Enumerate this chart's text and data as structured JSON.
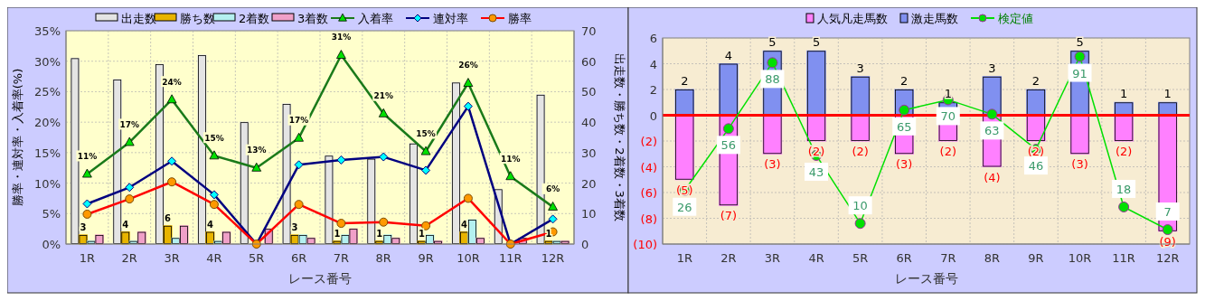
{
  "chart_data": [
    {
      "type": "bar",
      "xlabel": "レース番号",
      "ylabel": "勝率・連対率・入着率(%)",
      "y2label": "出走数・勝ち数・2着数・3着数",
      "categories": [
        "1R",
        "2R",
        "3R",
        "4R",
        "5R",
        "6R",
        "7R",
        "8R",
        "9R",
        "10R",
        "11R",
        "12R"
      ],
      "ylim": [
        0,
        35
      ],
      "yticks": [
        {
          "value": 0,
          "label": "0%"
        },
        {
          "value": 5,
          "label": "5%"
        },
        {
          "value": 10,
          "label": "10%"
        },
        {
          "value": 15,
          "label": "15%"
        },
        {
          "value": 20,
          "label": "20%"
        },
        {
          "value": 25,
          "label": "25%"
        },
        {
          "value": 30,
          "label": "30%"
        },
        {
          "value": 35,
          "label": "35%"
        }
      ],
      "y2lim": [
        0,
        70
      ],
      "y2ticks": [
        0,
        10,
        20,
        30,
        40,
        50,
        60,
        70
      ],
      "grid": true,
      "legend": "top",
      "series": [
        {
          "name": "出走数",
          "axis": "y2",
          "color": "#e4e4e4",
          "values": [
            61,
            54,
            59,
            62,
            40,
            46,
            29,
            28,
            33,
            53,
            18,
            49
          ]
        },
        {
          "name": "勝ち数",
          "axis": "y2",
          "color": "#e8b400",
          "values": [
            3,
            4,
            6,
            4,
            0,
            3,
            1,
            1,
            1,
            4,
            0,
            1
          ],
          "value_labels": [
            "3",
            "4",
            "6",
            "4",
            null,
            "3",
            "1",
            "1",
            "1",
            "4",
            null,
            "1"
          ]
        },
        {
          "name": "2着数",
          "axis": "y2",
          "color": "#b4f0f0",
          "values": [
            1,
            1,
            2,
            1,
            0,
            3,
            3,
            3,
            3,
            8,
            0,
            1
          ]
        },
        {
          "name": "3着数",
          "axis": "y2",
          "color": "#f0a0c8",
          "values": [
            3,
            4,
            6,
            4,
            5,
            2,
            5,
            2,
            1,
            2,
            2,
            1
          ]
        },
        {
          "name": "入着率",
          "type": "line",
          "color": "#1a7a1a",
          "marker": "triangle",
          "values": [
            11.5,
            16.7,
            23.7,
            14.5,
            12.5,
            17.4,
            31.0,
            21.4,
            15.2,
            26.4,
            11.1,
            6.1
          ],
          "value_labels": [
            "11%",
            "17%",
            "24%",
            "15%",
            "13%",
            "17%",
            "31%",
            "21%",
            "15%",
            "26%",
            "11%",
            "6%"
          ]
        },
        {
          "name": "連対率",
          "type": "line",
          "color": "#000080",
          "marker": "diamond",
          "values": [
            6.6,
            9.3,
            13.6,
            8.1,
            0,
            13.0,
            13.8,
            14.3,
            12.1,
            22.6,
            0,
            4.1
          ]
        },
        {
          "name": "勝率",
          "type": "line",
          "color": "#ff0000",
          "marker": "circle",
          "values": [
            4.9,
            7.4,
            10.2,
            6.5,
            0,
            6.5,
            3.4,
            3.6,
            3.0,
            7.5,
            0,
            2.0
          ]
        }
      ]
    },
    {
      "type": "bar",
      "xlabel": "レース番号",
      "stacked": true,
      "categories": [
        "1R",
        "2R",
        "3R",
        "4R",
        "5R",
        "6R",
        "7R",
        "8R",
        "9R",
        "10R",
        "11R",
        "12R"
      ],
      "ylim": [
        -10,
        6
      ],
      "yticks": [
        {
          "value": -10,
          "label": "(10)"
        },
        {
          "value": -8,
          "label": "(8)"
        },
        {
          "value": -6,
          "label": "(6)"
        },
        {
          "value": -4,
          "label": "(4)"
        },
        {
          "value": -2,
          "label": "(2)"
        },
        0,
        2,
        4,
        6
      ],
      "y2lim": [
        0,
        100
      ],
      "grid": true,
      "legend": "top",
      "ref_lines": [
        {
          "axis": "y",
          "value": 0,
          "color": "#ff0000"
        }
      ],
      "series": [
        {
          "name": "人気凡走馬数",
          "color": "#ff80ff",
          "values": [
            -5,
            -7,
            -3,
            -2,
            -2,
            -3,
            -2,
            -4,
            -2,
            -3,
            -2,
            -9
          ],
          "value_labels": [
            "(5)",
            "(7)",
            "(3)",
            "(2)",
            "(2)",
            "(3)",
            "(2)",
            "(4)",
            "(2)",
            "(3)",
            "(2)",
            "(9)"
          ]
        },
        {
          "name": "激走馬数",
          "color": "#8090f0",
          "values": [
            2,
            4,
            5,
            5,
            3,
            2,
            1,
            3,
            2,
            5,
            1,
            1
          ],
          "value_labels": [
            "2",
            "4",
            "5",
            "5",
            "3",
            "2",
            "1",
            "3",
            "2",
            "5",
            "1",
            "1"
          ]
        },
        {
          "name": "検定値",
          "type": "line",
          "axis": "y2",
          "color": "#00e000",
          "marker": "circle",
          "values": [
            26,
            56,
            88,
            43,
            10,
            65,
            70,
            63,
            46,
            91,
            18,
            7
          ],
          "value_labels": [
            "26",
            "56",
            "88",
            "43",
            "10",
            "65",
            "70",
            "63",
            "46",
            "91",
            "18",
            "7"
          ]
        }
      ]
    }
  ]
}
